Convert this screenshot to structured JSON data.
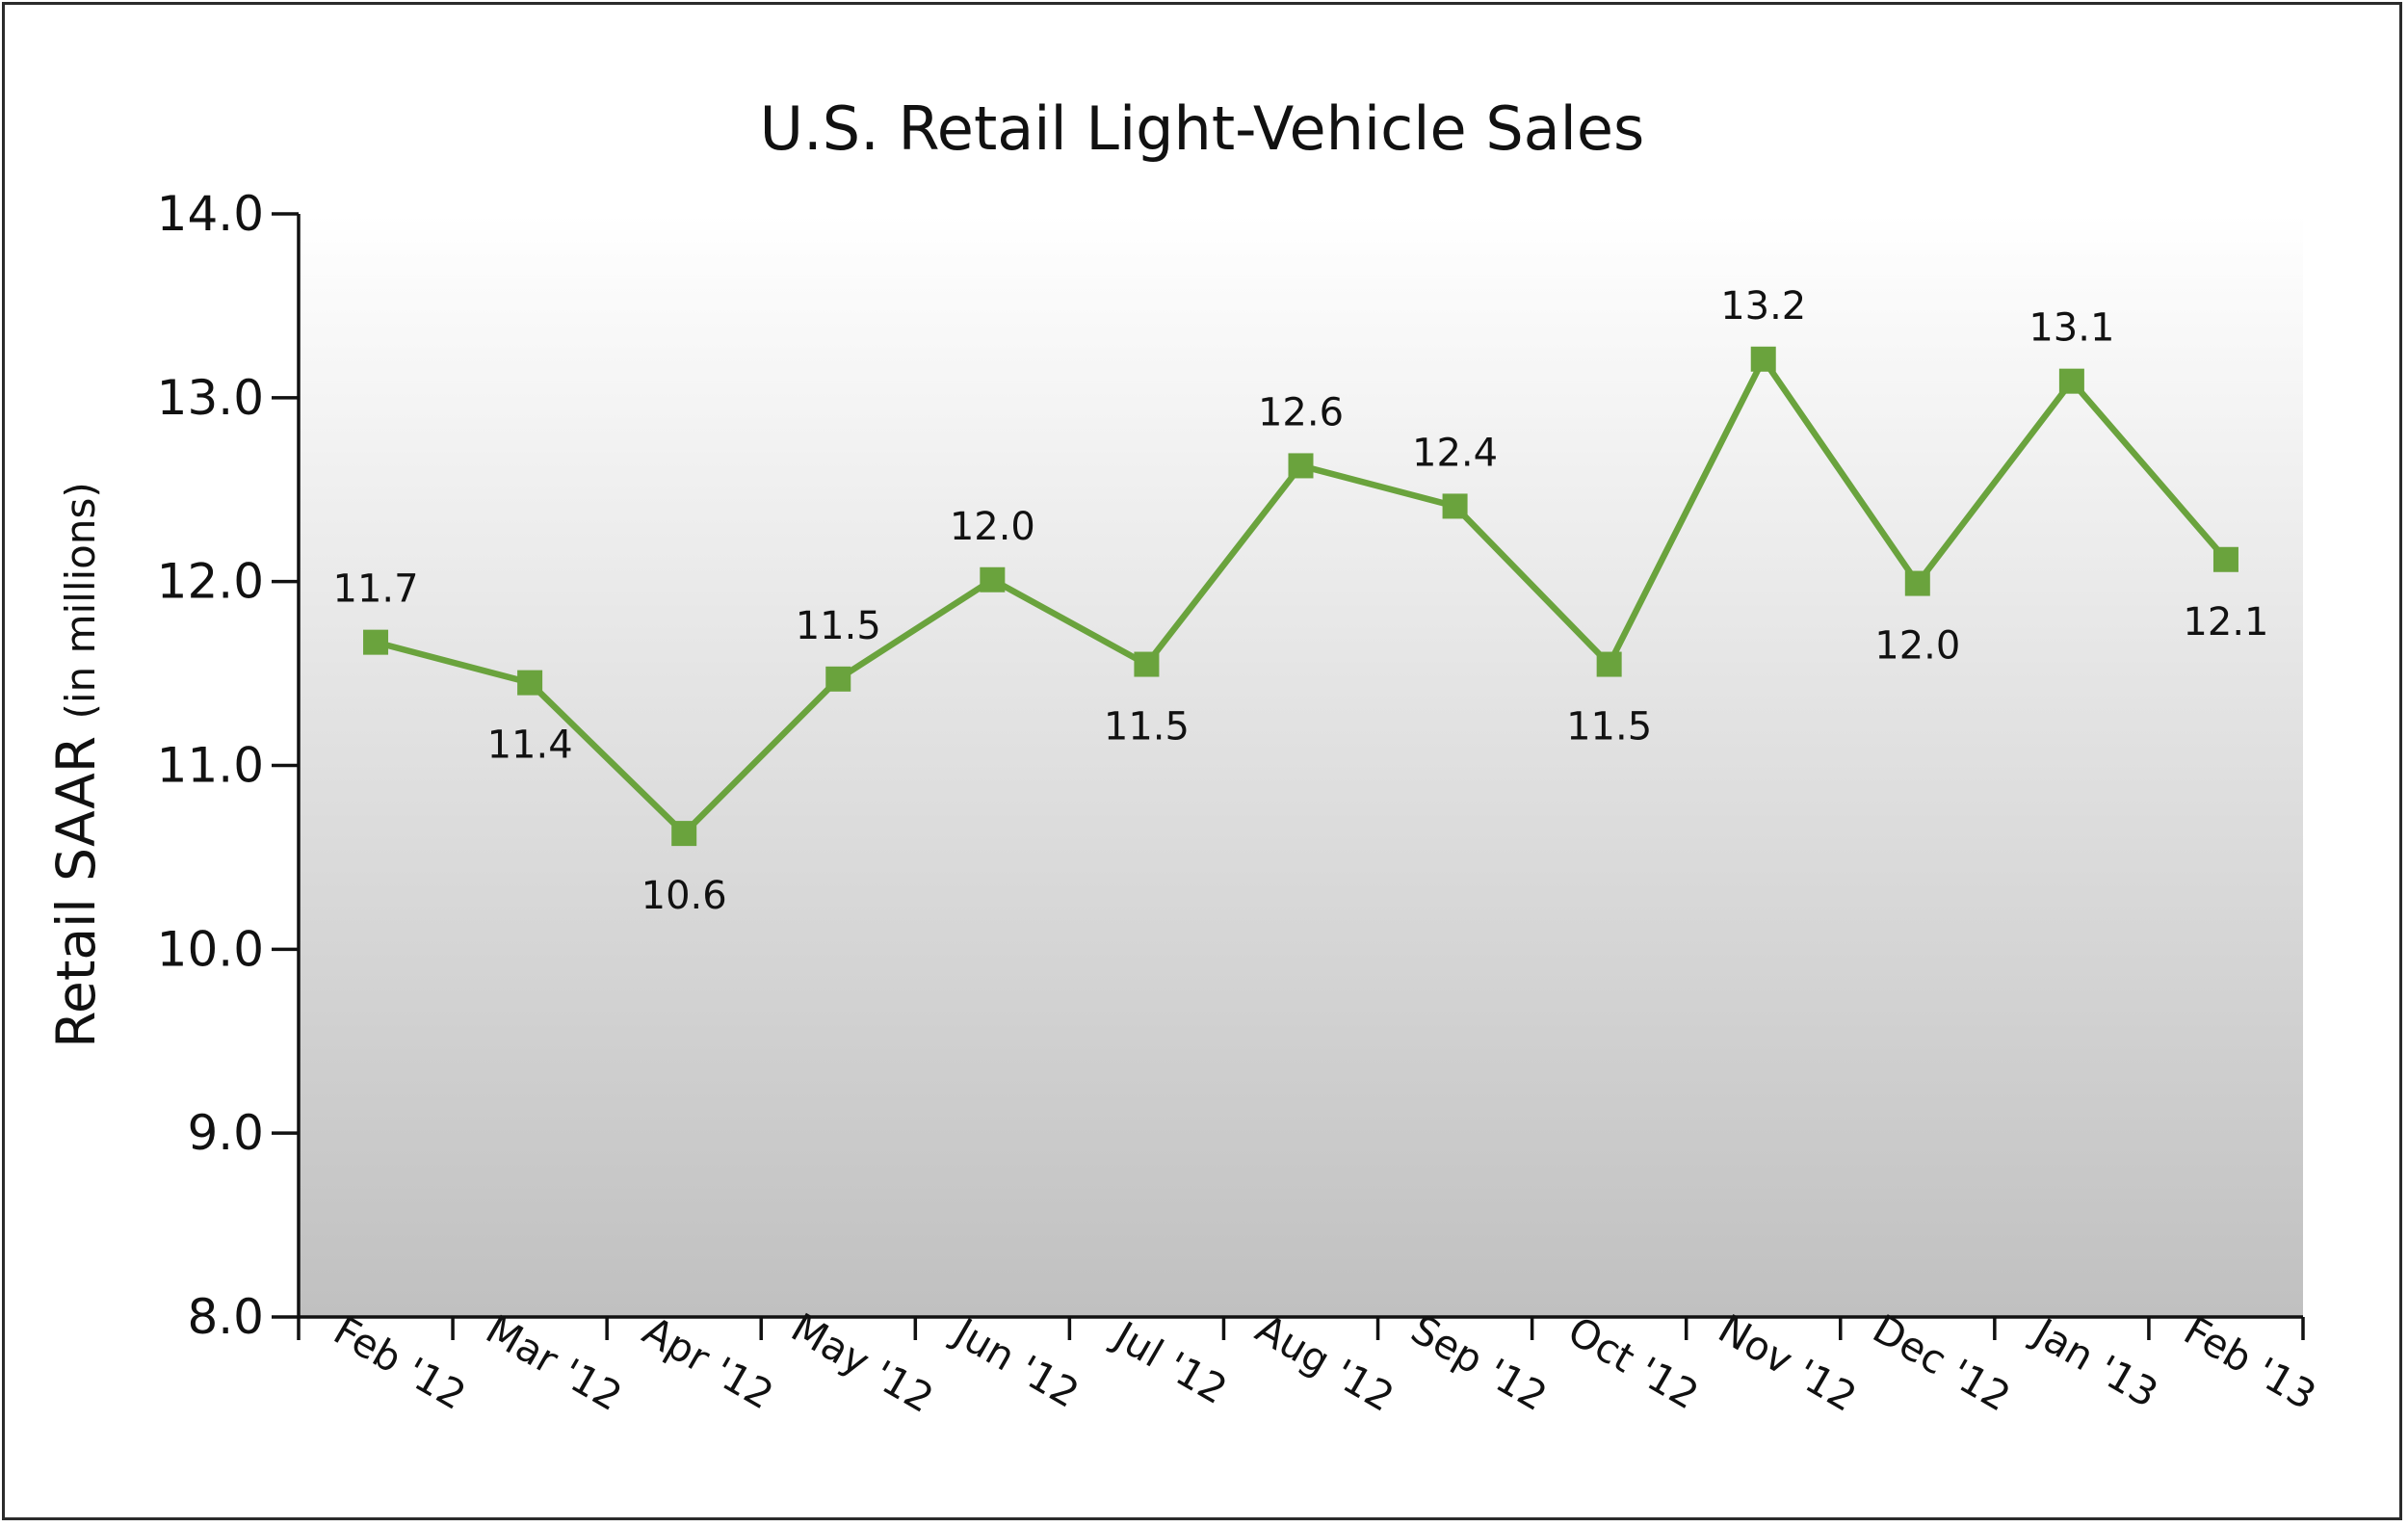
{
  "chart_data": {
    "type": "line",
    "title": "U.S. Retail Light-Vehicle Sales",
    "ylabel": "Retail SAAR",
    "ylabel_sub": "(in millions)",
    "xlabel": "",
    "ylim": [
      8.0,
      14.0
    ],
    "yticks": [
      "8.0",
      "9.0",
      "10.0",
      "11.0",
      "12.0",
      "13.0",
      "14.0"
    ],
    "categories": [
      "Feb '12",
      "Mar '12",
      "Apr '12",
      "May '12",
      "Jun '12",
      "Jul '12",
      "Aug '12",
      "Sep '12",
      "Oct '12",
      "Nov '12",
      "Dec '12",
      "Jan '13",
      "Feb '13"
    ],
    "series": [
      {
        "name": "",
        "color": "#6aa33d",
        "values": [
          11.67,
          11.45,
          10.63,
          11.47,
          12.01,
          11.55,
          12.63,
          12.41,
          11.55,
          13.21,
          11.99,
          13.09,
          12.12
        ],
        "labels": [
          "11.7",
          "11.4",
          "10.6",
          "11.5",
          "12.0",
          "11.5",
          "12.6",
          "12.4",
          "11.5",
          "13.2",
          "12.0",
          "13.1",
          "12.1"
        ],
        "label_positions": [
          "above",
          "below",
          "below",
          "above",
          "above",
          "below",
          "above",
          "above",
          "below",
          "above",
          "below",
          "above",
          "below"
        ]
      }
    ],
    "grid": false,
    "background": "gradient white-to-gray"
  }
}
